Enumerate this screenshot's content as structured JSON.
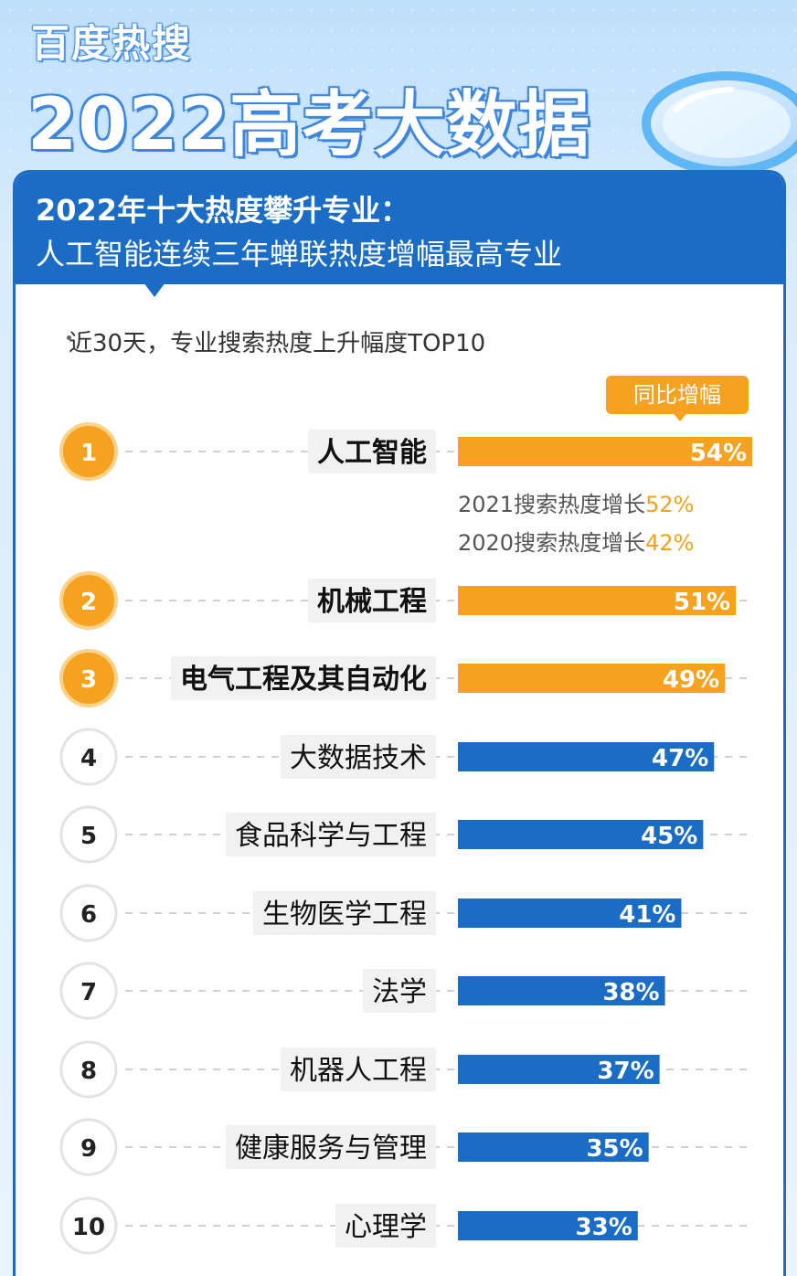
{
  "header": {
    "brand": "百度热搜",
    "title": "2022高考大数据"
  },
  "card": {
    "heading_line1": "2022年十大热度攀升专业：",
    "heading_line2": "人工智能连续三年蝉联热度增幅最高专业",
    "subtitle": "近30天，专业搜索热度上升幅度TOP10",
    "badge": "同比增幅"
  },
  "notes": {
    "line1_text": "2021搜索热度增长",
    "line1_value": "52%",
    "line2_text": "2020搜索热度增长",
    "line2_value": "42%"
  },
  "colors": {
    "accent_orange": "#f4a21f",
    "accent_blue": "#1a6cc4"
  },
  "chart_data": {
    "type": "bar",
    "categories": [
      "人工智能",
      "机械工程",
      "电气工程及其自动化",
      "大数据技术",
      "食品科学与工程",
      "生物医学工程",
      "法学",
      "机器人工程",
      "健康服务与管理",
      "心理学"
    ],
    "ranks": [
      "1",
      "2",
      "3",
      "4",
      "5",
      "6",
      "7",
      "8",
      "9",
      "10"
    ],
    "values": [
      54,
      51,
      49,
      47,
      45,
      41,
      38,
      37,
      35,
      33
    ],
    "value_labels": [
      "54%",
      "51%",
      "49%",
      "47%",
      "45%",
      "41%",
      "38%",
      "37%",
      "35%",
      "33%"
    ],
    "highlighted_top": 3,
    "xlim": [
      0,
      54
    ],
    "grid": false,
    "legend": "none"
  }
}
